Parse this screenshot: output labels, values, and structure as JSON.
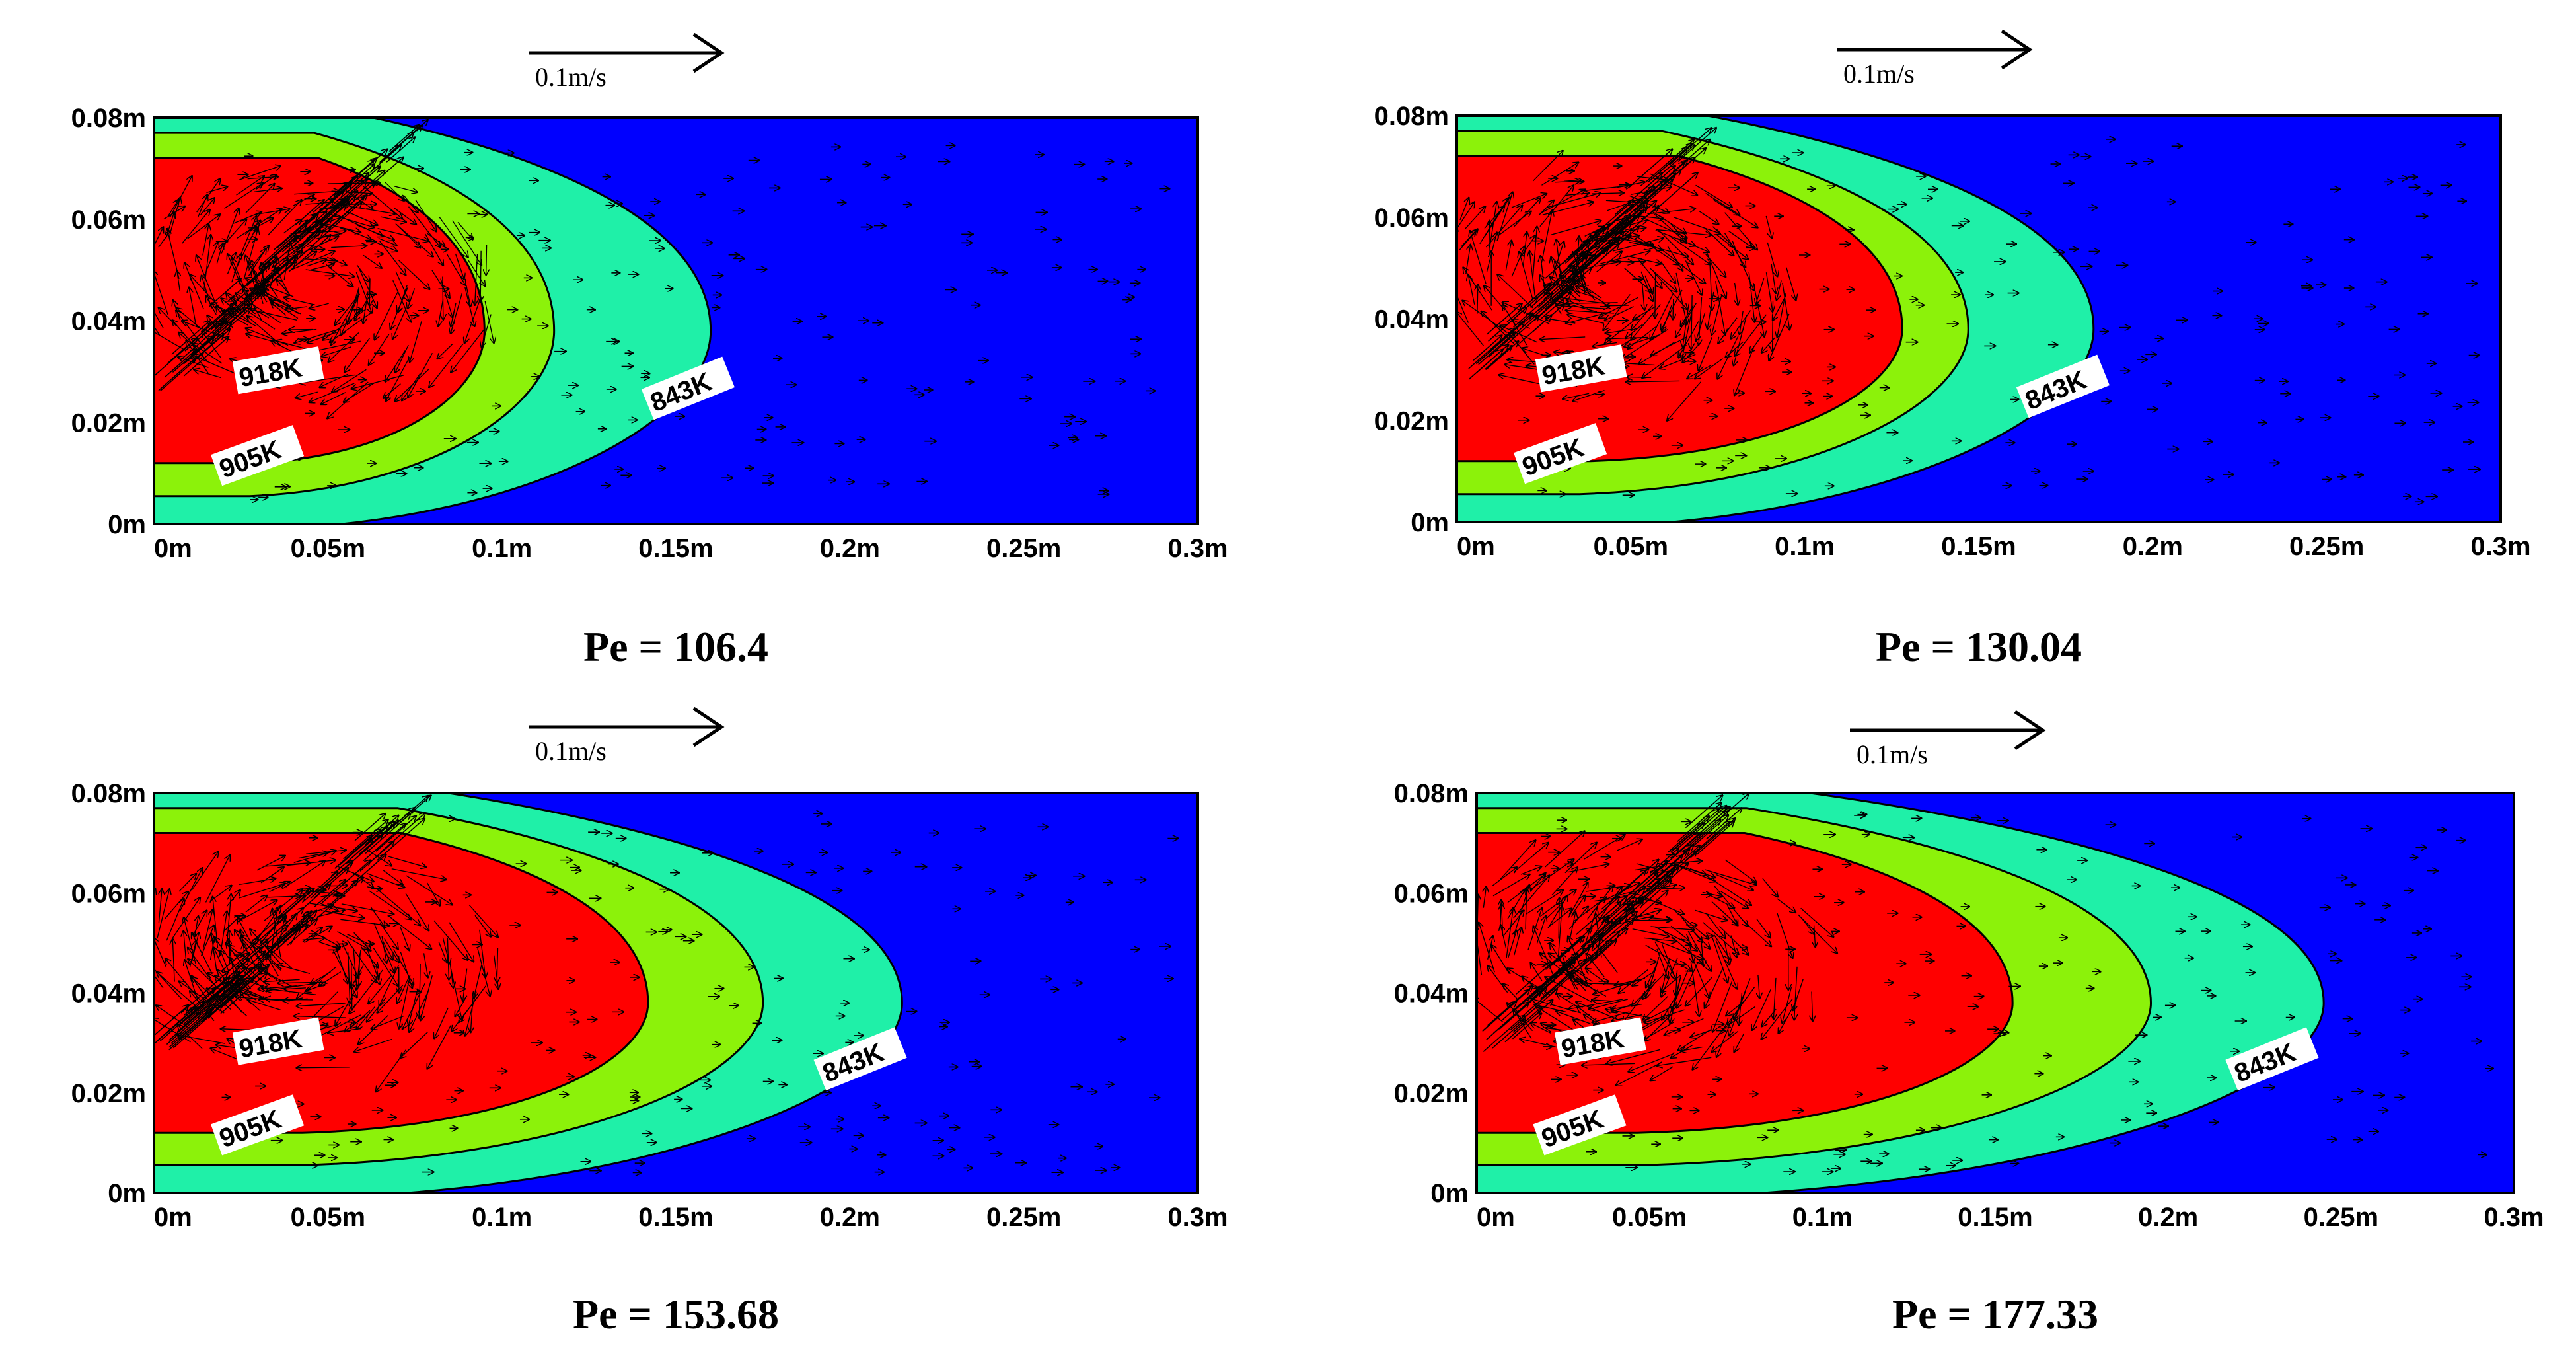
{
  "colors": {
    "outer_blue": "#0000ff",
    "band_cyan": "#1ff0a8",
    "band_green": "#8cf20a",
    "core_red": "#ff0000",
    "arrow": "#000000",
    "text": "#000000"
  },
  "chart_data": [
    {
      "type": "contour",
      "caption": "Pe = 106.4",
      "reference_vector_label": "0.1m/s",
      "x_ticks": [
        "0m",
        "0.05m",
        "0.1m",
        "0.15m",
        "0.2m",
        "0.25m",
        "0.3m"
      ],
      "y_ticks": [
        "0m",
        "0.02m",
        "0.04m",
        "0.06m",
        "0.08m"
      ],
      "xlim": [
        0,
        0.3
      ],
      "ylim": [
        0,
        0.08
      ],
      "isotherms": [
        {
          "label": "843K",
          "tip_x": 0.16
        },
        {
          "label": "905K",
          "tip_x": 0.115
        },
        {
          "label": "918K",
          "tip_x": 0.095
        }
      ]
    },
    {
      "type": "contour",
      "caption": "Pe = 130.04",
      "reference_vector_label": "0.1m/s",
      "x_ticks": [
        "0m",
        "0.05m",
        "0.1m",
        "0.15m",
        "0.2m",
        "0.25m",
        "0.3m"
      ],
      "y_ticks": [
        "0m",
        "0.02m",
        "0.04m",
        "0.06m",
        "0.08m"
      ],
      "xlim": [
        0,
        0.3
      ],
      "ylim": [
        0,
        0.08
      ],
      "isotherms": [
        {
          "label": "843K",
          "tip_x": 0.183
        },
        {
          "label": "905K",
          "tip_x": 0.147
        },
        {
          "label": "918K",
          "tip_x": 0.128
        }
      ]
    },
    {
      "type": "contour",
      "caption": "Pe = 153.68",
      "reference_vector_label": "0.1m/s",
      "x_ticks": [
        "0m",
        "0.05m",
        "0.1m",
        "0.15m",
        "0.2m",
        "0.25m",
        "0.3m"
      ],
      "y_ticks": [
        "0m",
        "0.02m",
        "0.04m",
        "0.06m",
        "0.08m"
      ],
      "xlim": [
        0,
        0.3
      ],
      "ylim": [
        0,
        0.08
      ],
      "isotherms": [
        {
          "label": "843K",
          "tip_x": 0.215
        },
        {
          "label": "905K",
          "tip_x": 0.175
        },
        {
          "label": "918K",
          "tip_x": 0.142
        }
      ]
    },
    {
      "type": "contour",
      "caption": "Pe = 177.33",
      "reference_vector_label": "0.1m/s",
      "x_ticks": [
        "0m",
        "0.05m",
        "0.1m",
        "0.15m",
        "0.2m",
        "0.25m",
        "0.3m"
      ],
      "y_ticks": [
        "0m",
        "0.02m",
        "0.04m",
        "0.06m",
        "0.08m"
      ],
      "xlim": [
        0,
        0.3
      ],
      "ylim": [
        0,
        0.08
      ],
      "isotherms": [
        {
          "label": "843K",
          "tip_x": 0.245
        },
        {
          "label": "905K",
          "tip_x": 0.195
        },
        {
          "label": "918K",
          "tip_x": 0.155
        }
      ]
    }
  ]
}
